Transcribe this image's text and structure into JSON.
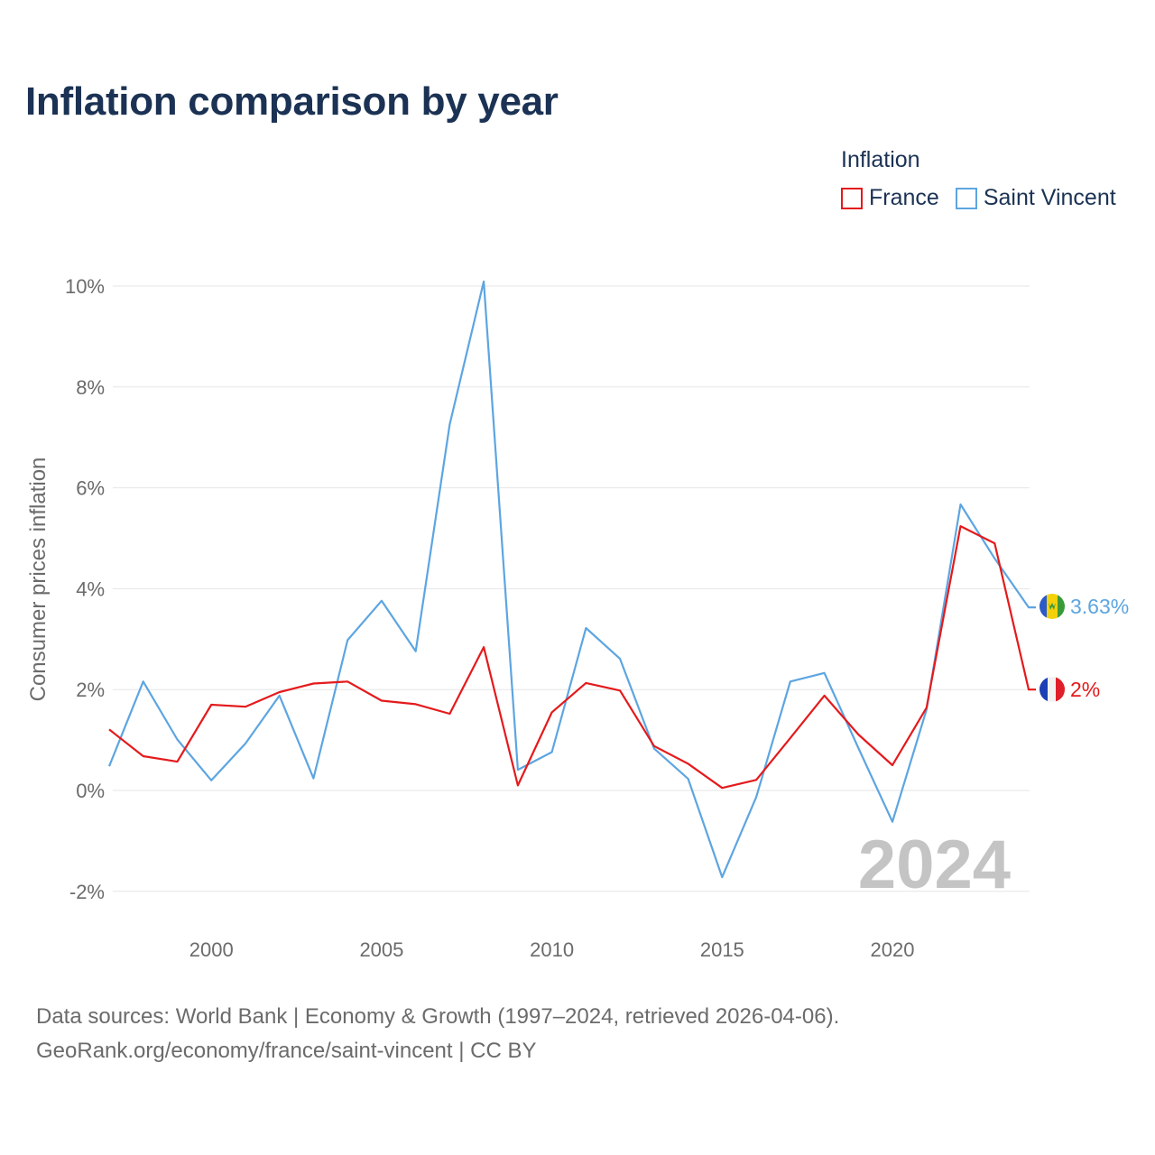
{
  "title": "Inflation comparison by year",
  "legend": {
    "title": "Inflation",
    "items": [
      {
        "name": "France",
        "color": "#e41a1c"
      },
      {
        "name": "Saint Vincent",
        "color": "#5da5e1"
      }
    ]
  },
  "watermark_year": "2024",
  "source": {
    "line1": "Data sources: World Bank | Economy & Growth (1997–2024, retrieved 2026-04-06).",
    "line2": "GeoRank.org/economy/france/saint-vincent | CC BY"
  },
  "chart_data": {
    "type": "line",
    "title": "Inflation comparison by year",
    "xlabel": "",
    "ylabel": "Consumer prices inflation",
    "xlim": [
      1997,
      2024
    ],
    "ylim": [
      -2.5,
      10.5
    ],
    "x_ticks": [
      2000,
      2005,
      2010,
      2015,
      2020
    ],
    "x_tick_labels": [
      "2000",
      "2005",
      "2010",
      "2015",
      "2020"
    ],
    "y_ticks": [
      -2,
      0,
      2,
      4,
      6,
      8,
      10
    ],
    "y_tick_labels": [
      "-2%",
      "0%",
      "2%",
      "4%",
      "6%",
      "8%",
      "10%"
    ],
    "grid": true,
    "legend_position": "top-right",
    "x": [
      1997,
      1998,
      1999,
      2000,
      2001,
      2002,
      2003,
      2004,
      2005,
      2006,
      2007,
      2008,
      2009,
      2010,
      2011,
      2012,
      2013,
      2014,
      2015,
      2016,
      2017,
      2018,
      2019,
      2020,
      2021,
      2022,
      2023,
      2024
    ],
    "series": [
      {
        "name": "France",
        "color": "#e41a1c",
        "end_label": "2%",
        "values": [
          1.21,
          0.68,
          0.57,
          1.7,
          1.66,
          1.95,
          2.12,
          2.16,
          1.78,
          1.71,
          1.52,
          2.84,
          0.1,
          1.55,
          2.13,
          1.98,
          0.88,
          0.53,
          0.05,
          0.21,
          1.04,
          1.88,
          1.11,
          0.5,
          1.64,
          5.24,
          4.9,
          2.0
        ]
      },
      {
        "name": "Saint Vincent",
        "color": "#5da5e1",
        "end_label": "3.63%",
        "values": [
          0.48,
          2.16,
          1.01,
          0.2,
          0.93,
          1.88,
          0.24,
          2.98,
          3.76,
          2.76,
          7.26,
          10.09,
          0.41,
          0.76,
          3.22,
          2.61,
          0.83,
          0.23,
          -1.72,
          -0.13,
          2.16,
          2.33,
          0.84,
          -0.62,
          1.6,
          5.67,
          4.6,
          3.63
        ]
      }
    ]
  }
}
